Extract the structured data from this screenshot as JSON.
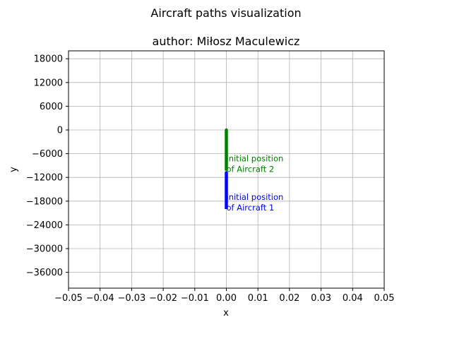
{
  "chart_data": {
    "type": "line",
    "suptitle": "Aircraft paths visualization",
    "title": "author: Miłosz Maculewicz",
    "xlabel": "x",
    "ylabel": "y",
    "xlim": [
      -0.05,
      0.05
    ],
    "ylim": [
      -40000,
      20000
    ],
    "xticks": [
      -0.05,
      -0.04,
      -0.03,
      -0.02,
      -0.01,
      0.0,
      0.01,
      0.02,
      0.03,
      0.04,
      0.05
    ],
    "xtick_labels": [
      "−0.05",
      "−0.04",
      "−0.03",
      "−0.02",
      "−0.01",
      "0.00",
      "0.01",
      "0.02",
      "0.03",
      "0.04",
      "0.05"
    ],
    "yticks": [
      18000,
      12000,
      6000,
      0,
      -6000,
      -12000,
      -18000,
      -24000,
      -30000,
      -36000
    ],
    "ytick_labels": [
      "18000",
      "12000",
      "6000",
      "0",
      "−6000",
      "−12000",
      "−18000",
      "−24000",
      "−30000",
      "−36000"
    ],
    "grid": true,
    "series": [
      {
        "name": "Aircraft 1",
        "color": "#0000ff",
        "x": [
          0,
          0
        ],
        "y": [
          -20000,
          -10800
        ]
      },
      {
        "name": "Aircraft 2",
        "color": "#008000",
        "x": [
          0,
          0
        ],
        "y": [
          -10300,
          0
        ]
      }
    ],
    "annotations": [
      {
        "lines": [
          "initial position",
          "of Aircraft 1"
        ],
        "x": 0,
        "y": -20000,
        "color": "#0000ff"
      },
      {
        "lines": [
          "initial position",
          "of Aircraft 2"
        ],
        "x": 0,
        "y": -10300,
        "color": "#008000"
      }
    ]
  }
}
